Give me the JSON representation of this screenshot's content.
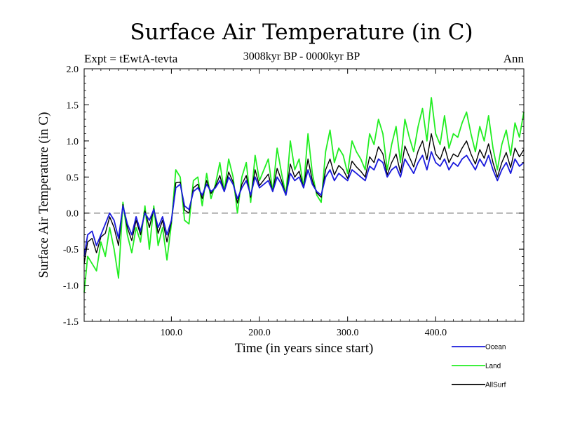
{
  "chart_data": {
    "type": "line",
    "title": "Surface Air Temperature (in C)",
    "expt_label": "Expt = tEwtA-tevta",
    "period_label": "3008kyr BP - 0000kyr BP",
    "season_label": "Ann",
    "xlabel": "Time (in years since start)",
    "ylabel": "Surface Air Temperature (in C)",
    "xlim": [
      1,
      500
    ],
    "ylim": [
      -1.5,
      2.0
    ],
    "x_ticks": [
      100,
      200,
      300,
      400
    ],
    "x_tick_labels": [
      "100.0",
      "200.0",
      "300.0",
      "400.0"
    ],
    "y_ticks": [
      -1.5,
      -1.0,
      -0.5,
      0.0,
      0.5,
      1.0,
      1.5,
      2.0
    ],
    "y_tick_labels": [
      "-1.5",
      "-1.0",
      "-0.5",
      "0.0",
      "0.5",
      "1.0",
      "1.5",
      "2.0"
    ],
    "reference_line": {
      "y": 0.0,
      "style": "dashed",
      "color": "#777777"
    },
    "legend_position": "bottom-right, below plot",
    "series": [
      {
        "name": "Ocean",
        "color": "#1a1adc",
        "x": [
          1,
          5,
          10,
          15,
          20,
          25,
          30,
          35,
          40,
          45,
          50,
          55,
          60,
          65,
          70,
          75,
          80,
          85,
          90,
          95,
          100,
          105,
          110,
          115,
          120,
          125,
          130,
          135,
          140,
          145,
          150,
          155,
          160,
          165,
          170,
          175,
          180,
          185,
          190,
          195,
          200,
          205,
          210,
          215,
          220,
          225,
          230,
          235,
          240,
          245,
          250,
          255,
          260,
          265,
          270,
          275,
          280,
          285,
          290,
          295,
          300,
          305,
          310,
          315,
          320,
          325,
          330,
          335,
          340,
          345,
          350,
          355,
          360,
          365,
          370,
          375,
          380,
          385,
          390,
          395,
          400,
          405,
          410,
          415,
          420,
          425,
          430,
          435,
          440,
          445,
          450,
          455,
          460,
          465,
          470,
          475,
          480,
          485,
          490,
          495,
          500
        ],
        "values": [
          -0.6,
          -0.3,
          -0.25,
          -0.45,
          -0.3,
          -0.15,
          0.0,
          -0.1,
          -0.35,
          0.1,
          -0.15,
          -0.3,
          -0.05,
          -0.25,
          0.0,
          -0.1,
          0.05,
          -0.2,
          -0.05,
          -0.3,
          -0.1,
          0.35,
          0.4,
          0.1,
          0.05,
          0.3,
          0.35,
          0.25,
          0.4,
          0.3,
          0.35,
          0.45,
          0.3,
          0.5,
          0.4,
          0.2,
          0.35,
          0.45,
          0.25,
          0.5,
          0.35,
          0.4,
          0.45,
          0.3,
          0.5,
          0.4,
          0.25,
          0.55,
          0.45,
          0.5,
          0.35,
          0.6,
          0.4,
          0.3,
          0.25,
          0.5,
          0.6,
          0.45,
          0.55,
          0.5,
          0.45,
          0.6,
          0.55,
          0.5,
          0.45,
          0.65,
          0.6,
          0.75,
          0.7,
          0.5,
          0.6,
          0.65,
          0.5,
          0.75,
          0.65,
          0.55,
          0.7,
          0.8,
          0.6,
          0.85,
          0.7,
          0.65,
          0.75,
          0.6,
          0.7,
          0.65,
          0.75,
          0.8,
          0.7,
          0.6,
          0.75,
          0.65,
          0.8,
          0.6,
          0.45,
          0.6,
          0.7,
          0.55,
          0.75,
          0.65,
          0.7
        ]
      },
      {
        "name": "Land",
        "color": "#22ee22",
        "x": [
          1,
          5,
          10,
          15,
          20,
          25,
          30,
          35,
          40,
          45,
          50,
          55,
          60,
          65,
          70,
          75,
          80,
          85,
          90,
          95,
          100,
          105,
          110,
          115,
          120,
          125,
          130,
          135,
          140,
          145,
          150,
          155,
          160,
          165,
          170,
          175,
          180,
          185,
          190,
          195,
          200,
          205,
          210,
          215,
          220,
          225,
          230,
          235,
          240,
          245,
          250,
          255,
          260,
          265,
          270,
          275,
          280,
          285,
          290,
          295,
          300,
          305,
          310,
          315,
          320,
          325,
          330,
          335,
          340,
          345,
          350,
          355,
          360,
          365,
          370,
          375,
          380,
          385,
          390,
          395,
          400,
          405,
          410,
          415,
          420,
          425,
          430,
          435,
          440,
          445,
          450,
          455,
          460,
          465,
          470,
          475,
          480,
          485,
          490,
          495,
          500
        ],
        "values": [
          -1.1,
          -0.6,
          -0.7,
          -0.8,
          -0.4,
          -0.6,
          -0.2,
          -0.5,
          -0.9,
          0.15,
          -0.3,
          -0.55,
          -0.2,
          -0.4,
          0.1,
          -0.5,
          0.1,
          -0.45,
          -0.2,
          -0.65,
          -0.15,
          0.6,
          0.5,
          -0.1,
          -0.15,
          0.45,
          0.5,
          0.1,
          0.55,
          0.2,
          0.4,
          0.7,
          0.3,
          0.75,
          0.5,
          0.0,
          0.5,
          0.7,
          0.15,
          0.8,
          0.45,
          0.6,
          0.75,
          0.3,
          0.9,
          0.55,
          0.25,
          1.0,
          0.6,
          0.75,
          0.35,
          1.1,
          0.55,
          0.25,
          0.15,
          0.85,
          1.15,
          0.7,
          0.9,
          0.8,
          0.55,
          1.0,
          0.85,
          0.75,
          0.6,
          1.1,
          0.95,
          1.3,
          1.1,
          0.6,
          0.95,
          1.2,
          0.7,
          1.3,
          1.05,
          0.85,
          1.2,
          1.45,
          1.0,
          1.6,
          1.1,
          0.95,
          1.35,
          0.9,
          1.1,
          1.05,
          1.25,
          1.4,
          1.1,
          0.85,
          1.2,
          1.0,
          1.35,
          0.9,
          0.6,
          0.95,
          1.15,
          0.8,
          1.25,
          1.05,
          1.4
        ]
      },
      {
        "name": "AllSurf",
        "color": "#000000",
        "x": [
          1,
          5,
          10,
          15,
          20,
          25,
          30,
          35,
          40,
          45,
          50,
          55,
          60,
          65,
          70,
          75,
          80,
          85,
          90,
          95,
          100,
          105,
          110,
          115,
          120,
          125,
          130,
          135,
          140,
          145,
          150,
          155,
          160,
          165,
          170,
          175,
          180,
          185,
          190,
          195,
          200,
          205,
          210,
          215,
          220,
          225,
          230,
          235,
          240,
          245,
          250,
          255,
          260,
          265,
          270,
          275,
          280,
          285,
          290,
          295,
          300,
          305,
          310,
          315,
          320,
          325,
          330,
          335,
          340,
          345,
          350,
          355,
          360,
          365,
          370,
          375,
          380,
          385,
          390,
          395,
          400,
          405,
          410,
          415,
          420,
          425,
          430,
          435,
          440,
          445,
          450,
          455,
          460,
          465,
          470,
          475,
          480,
          485,
          490,
          495,
          500
        ],
        "values": [
          -0.7,
          -0.4,
          -0.35,
          -0.55,
          -0.33,
          -0.28,
          -0.05,
          -0.2,
          -0.45,
          0.12,
          -0.2,
          -0.38,
          -0.1,
          -0.3,
          0.03,
          -0.2,
          0.06,
          -0.28,
          -0.1,
          -0.4,
          -0.12,
          0.42,
          0.43,
          0.04,
          0.0,
          0.35,
          0.4,
          0.2,
          0.45,
          0.27,
          0.37,
          0.52,
          0.3,
          0.57,
          0.43,
          0.14,
          0.4,
          0.52,
          0.22,
          0.6,
          0.38,
          0.46,
          0.54,
          0.3,
          0.62,
          0.45,
          0.25,
          0.68,
          0.5,
          0.58,
          0.35,
          0.75,
          0.45,
          0.28,
          0.22,
          0.6,
          0.75,
          0.53,
          0.66,
          0.6,
          0.48,
          0.72,
          0.64,
          0.58,
          0.5,
          0.78,
          0.7,
          0.92,
          0.82,
          0.53,
          0.7,
          0.82,
          0.56,
          0.93,
          0.78,
          0.64,
          0.86,
          1.0,
          0.74,
          1.1,
          0.82,
          0.74,
          0.92,
          0.7,
          0.82,
          0.78,
          0.9,
          1.0,
          0.82,
          0.68,
          0.88,
          0.76,
          0.96,
          0.7,
          0.5,
          0.7,
          0.84,
          0.63,
          0.9,
          0.78,
          0.88
        ]
      }
    ]
  }
}
